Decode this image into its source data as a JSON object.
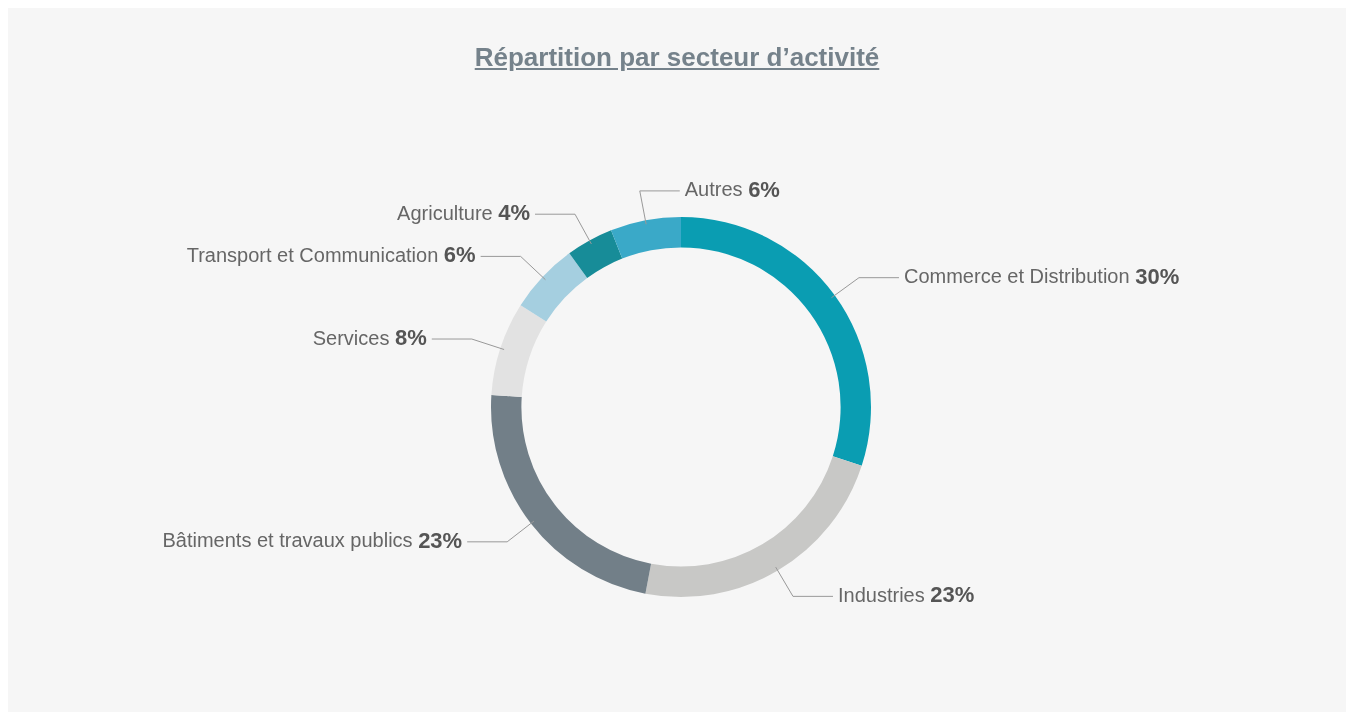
{
  "chart_data": {
    "type": "donut",
    "title": "Répartition par secteur d’activité",
    "categories": [
      "Commerce et Distribution",
      "Industries",
      "Bâtiments et travaux publics",
      "Services",
      "Transport et Communication",
      "Agriculture",
      "Autres"
    ],
    "values": [
      30,
      23,
      23,
      8,
      6,
      4,
      6
    ],
    "value_labels": [
      "30%",
      "23%",
      "23%",
      "8%",
      "6%",
      "4%",
      "6%"
    ],
    "colors": [
      "#0a9db2",
      "#c8c8c6",
      "#727f88",
      "#e2e2e2",
      "#a5cfe0",
      "#178c98",
      "#3aa9c8"
    ],
    "legend": false
  }
}
